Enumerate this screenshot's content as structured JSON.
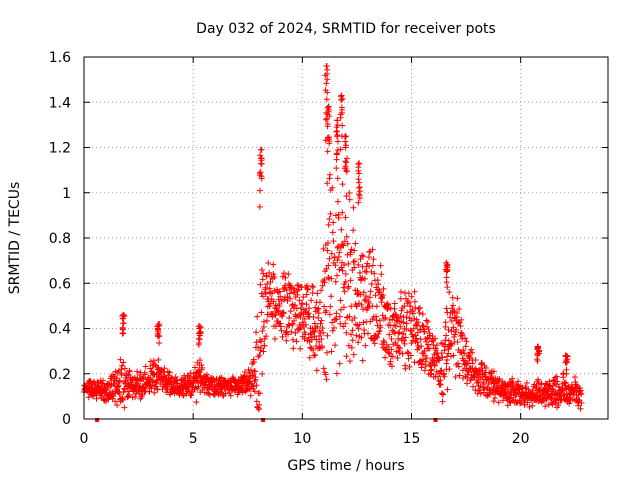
{
  "chart_data": {
    "type": "scatter",
    "title": "Day 032 of 2024, SRMTID for receiver pots",
    "xlabel": "GPS time / hours",
    "ylabel": "SRMTID / TECUs",
    "xlim": [
      0,
      24
    ],
    "ylim": [
      0,
      1.6
    ],
    "xticks": [
      0,
      5,
      10,
      15,
      20
    ],
    "xtick_labels": [
      "0",
      "5",
      "10",
      "15",
      "20"
    ],
    "yticks": [
      0,
      0.2,
      0.4,
      0.6,
      0.8,
      1.0,
      1.2,
      1.4,
      1.6
    ],
    "ytick_labels": [
      "0",
      "0.2",
      "0.4",
      "0.6",
      "0.8",
      "1",
      "1.2",
      "1.4",
      "1.6"
    ],
    "grid": true,
    "marker": "+",
    "color": "#ff0000",
    "x_range_hours": [
      0,
      22.8
    ],
    "series": [
      {
        "name": "SRMTID",
        "envelope_x": [
          0,
          0.5,
          1,
          1.5,
          1.8,
          2,
          2.5,
          3,
          3.3,
          3.5,
          4,
          4.5,
          5,
          5.2,
          5.5,
          6,
          6.5,
          7,
          7.5,
          7.8,
          8,
          8.1,
          8.3,
          8.5,
          9,
          9.5,
          10,
          10.5,
          10.8,
          11,
          11.2,
          11.5,
          11.8,
          12,
          12.3,
          12.5,
          12.8,
          13,
          13.5,
          14,
          14.5,
          15,
          15.5,
          16,
          16.3,
          16.5,
          16.8,
          17,
          17.5,
          18,
          18.5,
          19,
          19.5,
          20,
          20.5,
          21,
          21.5,
          22,
          22.5,
          22.8
        ],
        "envelope_center": [
          0.13,
          0.13,
          0.12,
          0.15,
          0.16,
          0.15,
          0.14,
          0.17,
          0.2,
          0.18,
          0.14,
          0.14,
          0.15,
          0.19,
          0.16,
          0.14,
          0.14,
          0.15,
          0.16,
          0.19,
          0.26,
          0.42,
          0.5,
          0.55,
          0.5,
          0.47,
          0.48,
          0.42,
          0.4,
          0.48,
          0.6,
          0.6,
          0.6,
          0.65,
          0.6,
          0.52,
          0.55,
          0.55,
          0.48,
          0.38,
          0.42,
          0.4,
          0.33,
          0.28,
          0.21,
          0.25,
          0.42,
          0.38,
          0.25,
          0.2,
          0.15,
          0.14,
          0.12,
          0.11,
          0.11,
          0.12,
          0.12,
          0.13,
          0.12,
          0.1
        ],
        "envelope_spread": [
          0.05,
          0.05,
          0.05,
          0.1,
          0.14,
          0.08,
          0.08,
          0.1,
          0.13,
          0.07,
          0.06,
          0.06,
          0.08,
          0.12,
          0.06,
          0.05,
          0.05,
          0.05,
          0.06,
          0.1,
          0.4,
          0.4,
          0.25,
          0.2,
          0.2,
          0.2,
          0.2,
          0.2,
          0.25,
          0.4,
          0.6,
          0.5,
          0.4,
          0.5,
          0.45,
          0.3,
          0.3,
          0.35,
          0.25,
          0.2,
          0.22,
          0.22,
          0.2,
          0.15,
          0.12,
          0.2,
          0.28,
          0.22,
          0.15,
          0.1,
          0.08,
          0.07,
          0.07,
          0.06,
          0.06,
          0.07,
          0.08,
          0.08,
          0.08,
          0.06
        ],
        "peaks": [
          {
            "x": 8.1,
            "y": 1.19
          },
          {
            "x": 11.1,
            "y": 1.56
          },
          {
            "x": 11.2,
            "y": 1.38
          },
          {
            "x": 11.6,
            "y": 1.32
          },
          {
            "x": 11.8,
            "y": 1.43
          },
          {
            "x": 12.0,
            "y": 1.25
          },
          {
            "x": 12.6,
            "y": 1.13
          },
          {
            "x": 16.6,
            "y": 0.69
          },
          {
            "x": 1.8,
            "y": 0.46
          },
          {
            "x": 3.4,
            "y": 0.42
          },
          {
            "x": 5.3,
            "y": 0.41
          },
          {
            "x": 20.8,
            "y": 0.32
          },
          {
            "x": 22.1,
            "y": 0.28
          }
        ]
      }
    ],
    "missing_data_markers_x": [
      0.6,
      8.2,
      16.1
    ]
  }
}
